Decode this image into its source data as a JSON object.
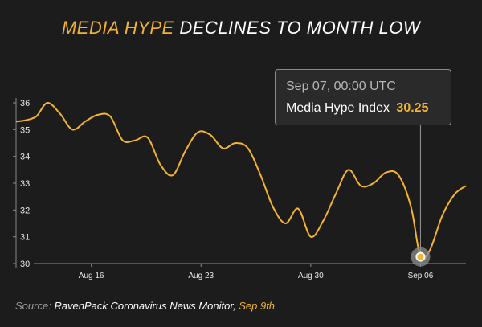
{
  "title": {
    "highlight": "MEDIA HYPE",
    "rest": "DECLINES TO MONTH LOW"
  },
  "colors": {
    "background": "#1c1c1c",
    "line": "#f4b42d",
    "accent": "#f4b42d",
    "text": "#ffffff"
  },
  "tooltip": {
    "date": "Sep  07, 00:00 UTC",
    "series_label": "Media Hype Index",
    "value": "30.25"
  },
  "source": {
    "label": "Source:",
    "text": "RavenPack Coronavirus News Monitor,",
    "date": "Sep 9th"
  },
  "chart_data": {
    "type": "line",
    "title": "MEDIA HYPE DECLINES TO MONTH LOW",
    "xlabel": "",
    "ylabel": "",
    "ylim": [
      30,
      36
    ],
    "yticks": [
      "30",
      "31",
      "32",
      "33",
      "34",
      "35",
      "36"
    ],
    "xticks": [
      {
        "label": "Aug 16",
        "day": 16
      },
      {
        "label": "Aug 23",
        "day": 23
      },
      {
        "label": "Aug 30",
        "day": 30
      },
      {
        "label": "Sep 06",
        "day": 37
      }
    ],
    "xlim": [
      11.2,
      39.9
    ],
    "grid": false,
    "highlight_point": {
      "day": 37.0,
      "value": 30.25
    },
    "series": [
      {
        "day": [
          11.2,
          11.8,
          12.5,
          13.2,
          14.0,
          14.8,
          15.6,
          16.4,
          17.2,
          18.0,
          18.8,
          19.6,
          20.4,
          21.2,
          22.0,
          22.8,
          23.6,
          24.4,
          25.2,
          26.0,
          26.8,
          27.6,
          28.4,
          29.2,
          30.0,
          30.8,
          31.6,
          32.4,
          33.2,
          34.0,
          34.8,
          35.6,
          36.4,
          37.0,
          37.6,
          38.4,
          39.2,
          39.9
        ],
        "values": [
          35.3,
          35.35,
          35.5,
          36.0,
          35.6,
          35.0,
          35.3,
          35.55,
          35.5,
          34.6,
          34.6,
          34.7,
          33.7,
          33.3,
          34.2,
          34.9,
          34.8,
          34.3,
          34.5,
          34.3,
          33.3,
          32.1,
          31.5,
          32.05,
          31.0,
          31.6,
          32.6,
          33.5,
          32.9,
          33.0,
          33.4,
          33.3,
          32.1,
          30.25,
          30.5,
          31.8,
          32.6,
          32.9
        ]
      }
    ]
  }
}
